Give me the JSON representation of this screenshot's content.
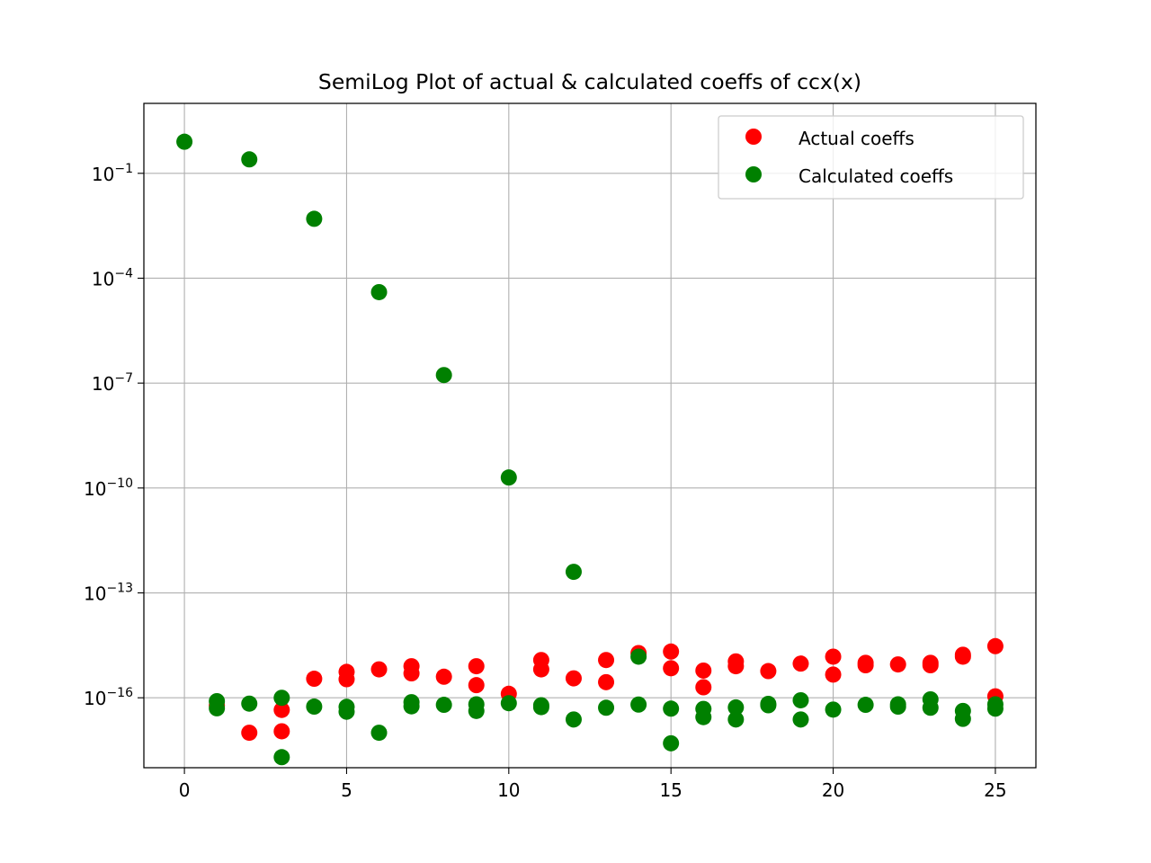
{
  "chart_data": {
    "type": "scatter",
    "title": "SemiLog Plot of actual & calculated coeffs of ccx(x)",
    "xlabel": "",
    "ylabel": "",
    "yscale": "log",
    "xlim": [
      -1.25,
      26.25
    ],
    "ylim": [
      1e-18,
      10.0
    ],
    "x_ticks": [
      0,
      5,
      10,
      15,
      20,
      25
    ],
    "y_ticks": [
      {
        "value": 0.1,
        "base": "10",
        "exp": "−1"
      },
      {
        "value": 0.0001,
        "base": "10",
        "exp": "−4"
      },
      {
        "value": 1e-07,
        "base": "10",
        "exp": "−7"
      },
      {
        "value": 1e-10,
        "base": "10",
        "exp": "−10"
      },
      {
        "value": 1e-13,
        "base": "10",
        "exp": "−13"
      },
      {
        "value": 1e-16,
        "base": "10",
        "exp": "−16"
      }
    ],
    "grid": true,
    "legend_position": "top-right",
    "series": [
      {
        "name": "Actual coeffs",
        "color": "#ff0000",
        "points": [
          [
            1,
            6e-17
          ],
          [
            2,
            1e-17
          ],
          [
            3,
            4.5e-17
          ],
          [
            3,
            1.1e-17
          ],
          [
            4,
            3.5e-16
          ],
          [
            5,
            5.5e-16
          ],
          [
            5,
            3.4e-16
          ],
          [
            6,
            6.5e-16
          ],
          [
            7,
            8e-16
          ],
          [
            7,
            5e-16
          ],
          [
            8,
            4e-16
          ],
          [
            9,
            8e-16
          ],
          [
            9,
            2.3e-16
          ],
          [
            10,
            1.3e-16
          ],
          [
            11,
            1.2e-15
          ],
          [
            11,
            6.5e-16
          ],
          [
            12,
            3.6e-16
          ],
          [
            13,
            1.2e-15
          ],
          [
            13,
            2.8e-16
          ],
          [
            14,
            1.9e-15
          ],
          [
            15,
            2.1e-15
          ],
          [
            15,
            7e-16
          ],
          [
            16,
            6e-16
          ],
          [
            16,
            2e-16
          ],
          [
            17,
            1.1e-15
          ],
          [
            17,
            8e-16
          ],
          [
            18,
            5.8e-16
          ],
          [
            19,
            9.5e-16
          ],
          [
            20,
            1.5e-15
          ],
          [
            20,
            4.6e-16
          ],
          [
            21,
            1e-15
          ],
          [
            21,
            8.5e-16
          ],
          [
            22,
            9e-16
          ],
          [
            23,
            1e-15
          ],
          [
            23,
            8.5e-16
          ],
          [
            24,
            1.7e-15
          ],
          [
            24,
            1.5e-15
          ],
          [
            25,
            3e-15
          ],
          [
            25,
            1.1e-16
          ]
        ]
      },
      {
        "name": "Calculated coeffs",
        "color": "#008000",
        "points": [
          [
            0,
            0.8
          ],
          [
            1,
            8e-17
          ],
          [
            1,
            5e-17
          ],
          [
            2,
            6.8e-17
          ],
          [
            3,
            1e-16
          ],
          [
            3,
            2e-18
          ],
          [
            4,
            5.6e-17
          ],
          [
            5,
            5.5e-17
          ],
          [
            5,
            4e-17
          ],
          [
            6,
            1e-17
          ],
          [
            7,
            7.5e-17
          ],
          [
            7,
            5.7e-17
          ],
          [
            8,
            6.3e-17
          ],
          [
            9,
            6.5e-17
          ],
          [
            9,
            4.2e-17
          ],
          [
            10,
            7e-17
          ],
          [
            10,
            2e-10
          ],
          [
            11,
            6.1e-17
          ],
          [
            11,
            5.4e-17
          ],
          [
            12,
            2.4e-17
          ],
          [
            12,
            4e-13
          ],
          [
            13,
            5.2e-17
          ],
          [
            14,
            6.4e-17
          ],
          [
            14,
            1.5e-15
          ],
          [
            15,
            4.9e-17
          ],
          [
            15,
            5e-18
          ],
          [
            16,
            4.8e-17
          ],
          [
            16,
            2.8e-17
          ],
          [
            17,
            5.3e-17
          ],
          [
            17,
            2.4e-17
          ],
          [
            18,
            6.7e-17
          ],
          [
            18,
            6.1e-17
          ],
          [
            19,
            8.5e-17
          ],
          [
            19,
            2.4e-17
          ],
          [
            20,
            4.6e-17
          ],
          [
            21,
            6.3e-17
          ],
          [
            22,
            6.5e-17
          ],
          [
            22,
            5.6e-17
          ],
          [
            23,
            9e-17
          ],
          [
            23,
            5.2e-17
          ],
          [
            24,
            4.2e-17
          ],
          [
            24,
            2.5e-17
          ],
          [
            25,
            6.5e-17
          ],
          [
            25,
            4.9e-17
          ],
          [
            2,
            0.25
          ],
          [
            4,
            0.005
          ],
          [
            6,
            4e-05
          ],
          [
            8,
            1.7e-07
          ]
        ]
      }
    ]
  }
}
